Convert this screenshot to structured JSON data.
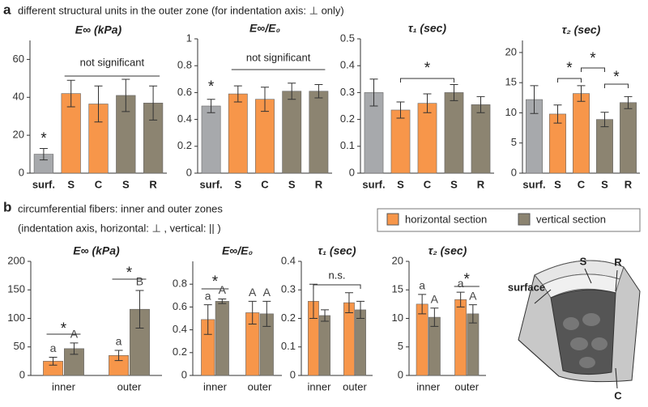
{
  "panel_a": {
    "label": "a",
    "caption": "different structural units in the outer zone (for indentation axis: ⊥ only)"
  },
  "panel_b": {
    "label": "b",
    "caption": [
      "circumferential fibers: inner and outer zones",
      "(indentation axis, horizontal: ⊥ , vertical: || )"
    ]
  },
  "diagram": {
    "labels": [
      "surface",
      "S",
      "R",
      "C"
    ]
  },
  "chart_data": [
    {
      "type": "bar",
      "title": "E∞ (kPa)",
      "categories": [
        "surf.",
        "S",
        "C",
        "S",
        "R"
      ],
      "values": [
        10,
        42,
        36.5,
        41,
        37
      ],
      "errors": [
        3,
        7,
        9.5,
        8.5,
        9
      ],
      "colors": [
        "#a7a9ac",
        "#f7964a",
        "#f7964a",
        "#8c8471",
        "#8c8471"
      ],
      "ylim": [
        0,
        70
      ],
      "yticks": [
        0,
        20,
        40,
        60
      ],
      "annotations": [
        "*",
        "not significant"
      ]
    },
    {
      "type": "bar",
      "title": "E∞/E₀",
      "categories": [
        "surf.",
        "S",
        "C",
        "S",
        "R"
      ],
      "values": [
        0.5,
        0.59,
        0.55,
        0.61,
        0.61
      ],
      "errors": [
        0.05,
        0.06,
        0.09,
        0.06,
        0.05
      ],
      "colors": [
        "#a7a9ac",
        "#f7964a",
        "#f7964a",
        "#8c8471",
        "#8c8471"
      ],
      "ylim": [
        0,
        1
      ],
      "yticks": [
        0,
        0.2,
        0.4,
        0.6,
        0.8,
        1
      ],
      "annotations": [
        "*",
        "not significant"
      ]
    },
    {
      "type": "bar",
      "title": "τ₁ (sec)",
      "categories": [
        "surf.",
        "S",
        "C",
        "S",
        "R"
      ],
      "values": [
        0.3,
        0.235,
        0.26,
        0.3,
        0.255
      ],
      "errors": [
        0.05,
        0.03,
        0.035,
        0.03,
        0.03
      ],
      "colors": [
        "#a7a9ac",
        "#f7964a",
        "#f7964a",
        "#8c8471",
        "#8c8471"
      ],
      "ylim": [
        0,
        0.5
      ],
      "yticks": [
        0,
        0.1,
        0.2,
        0.3,
        0.4,
        0.5
      ],
      "annotations": [
        "*"
      ]
    },
    {
      "type": "bar",
      "title": "τ₂ (sec)",
      "categories": [
        "surf.",
        "S",
        "C",
        "S",
        "R"
      ],
      "values": [
        12.2,
        9.8,
        13.2,
        8.9,
        11.7
      ],
      "errors": [
        2.3,
        1.5,
        1.3,
        1.2,
        1
      ],
      "colors": [
        "#a7a9ac",
        "#f7964a",
        "#f7964a",
        "#8c8471",
        "#8c8471"
      ],
      "ylim": [
        0,
        22
      ],
      "yticks": [
        0,
        5,
        10,
        15,
        20
      ],
      "annotations": [
        "*",
        "*",
        "*"
      ]
    },
    {
      "type": "bar",
      "title": "E∞ (kPa)",
      "categories": [
        "inner",
        "outer"
      ],
      "series": [
        {
          "name": "horizontal section",
          "color": "#f7964a",
          "values": [
            25,
            35
          ],
          "errors": [
            7,
            9
          ],
          "letters": [
            "a",
            "a"
          ]
        },
        {
          "name": "vertical section",
          "color": "#8c8471",
          "values": [
            47,
            116
          ],
          "errors": [
            10,
            33
          ],
          "letters": [
            "A",
            "B"
          ]
        }
      ],
      "ylim": [
        0,
        200
      ],
      "yticks": [
        0,
        50,
        100,
        150,
        200
      ],
      "annotations": [
        "*",
        "*"
      ]
    },
    {
      "type": "bar",
      "title": "E∞/E₀",
      "categories": [
        "inner",
        "outer"
      ],
      "series": [
        {
          "name": "horizontal section",
          "color": "#f7964a",
          "values": [
            0.49,
            0.55
          ],
          "errors": [
            0.13,
            0.1
          ],
          "letters": [
            "a",
            "A"
          ]
        },
        {
          "name": "vertical section",
          "color": "#8c8471",
          "values": [
            0.65,
            0.54
          ],
          "errors": [
            0.02,
            0.11
          ],
          "letters": [
            "A",
            "A"
          ]
        }
      ],
      "ylim": [
        0,
        1
      ],
      "yticks": [
        0,
        0.2,
        0.4,
        0.6,
        0.8
      ],
      "annotations": [
        "*"
      ]
    },
    {
      "type": "bar",
      "title": "τ₁ (sec)",
      "categories": [
        "inner",
        "outer"
      ],
      "series": [
        {
          "name": "horizontal section",
          "color": "#f7964a",
          "values": [
            0.26,
            0.255
          ],
          "errors": [
            0.06,
            0.035
          ]
        },
        {
          "name": "vertical section",
          "color": "#8c8471",
          "values": [
            0.21,
            0.23
          ],
          "errors": [
            0.02,
            0.03
          ]
        }
      ],
      "ylim": [
        0,
        0.4
      ],
      "yticks": [
        0,
        0.1,
        0.2,
        0.3,
        0.4
      ],
      "annotations": [
        "n.s."
      ]
    },
    {
      "type": "bar",
      "title": "τ₂ (sec)",
      "categories": [
        "inner",
        "outer"
      ],
      "series": [
        {
          "name": "horizontal section",
          "color": "#f7964a",
          "values": [
            12.5,
            13.3
          ],
          "errors": [
            1.7,
            1.3
          ],
          "letters": [
            "a",
            "a"
          ]
        },
        {
          "name": "vertical section",
          "color": "#8c8471",
          "values": [
            10.2,
            10.8
          ],
          "errors": [
            1.6,
            1.6
          ],
          "letters": [
            "A",
            "A"
          ]
        }
      ],
      "ylim": [
        0,
        20
      ],
      "yticks": [
        0,
        5,
        10,
        15,
        20
      ],
      "annotations": [
        "*"
      ]
    }
  ]
}
